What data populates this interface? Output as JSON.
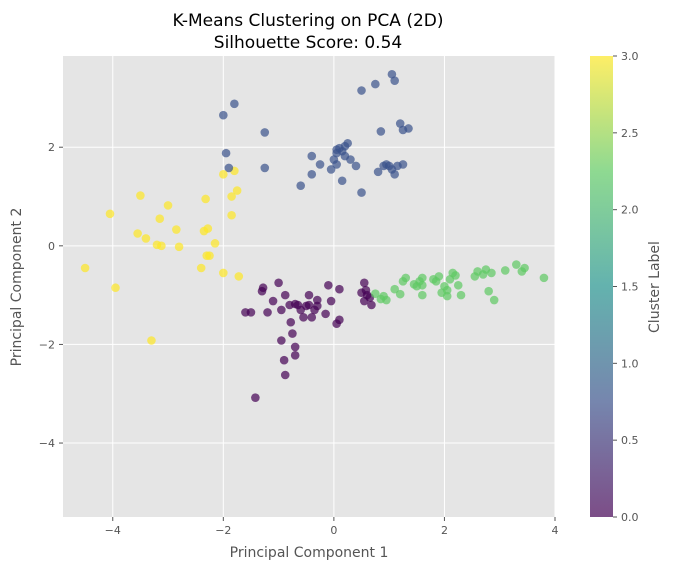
{
  "chart_data": {
    "type": "scatter",
    "title": "K-Means Clustering on PCA (2D)",
    "subtitle": "Silhouette Score: 0.54",
    "xlabel": "Principal Component 1",
    "ylabel": "Principal Component 2",
    "xlim": [
      -4.9,
      4.0
    ],
    "ylim": [
      -5.5,
      3.85
    ],
    "xticks": [
      -4,
      -2,
      0,
      2,
      4
    ],
    "yticks": [
      -4,
      -2,
      0,
      2
    ],
    "grid": true,
    "background": "#e5e5e5",
    "grid_color": "#ffffff",
    "point_alpha": 0.7,
    "colorbar": {
      "label": "Cluster Label",
      "range": [
        0.0,
        3.0
      ],
      "ticks": [
        "0.0",
        "0.5",
        "1.0",
        "1.5",
        "2.0",
        "2.5",
        "3.0"
      ],
      "tick_values": [
        0.0,
        0.5,
        1.0,
        1.5,
        2.0,
        2.5,
        3.0
      ],
      "colormap": "viridis",
      "stops": [
        "#440154",
        "#3b528b",
        "#21918c",
        "#5ec962",
        "#fde725"
      ]
    },
    "series": [
      {
        "cluster": 3,
        "color": "#fde725",
        "points": [
          [
            -4.5,
            -0.45
          ],
          [
            -4.05,
            0.65
          ],
          [
            -3.95,
            -0.85
          ],
          [
            -3.5,
            1.02
          ],
          [
            -3.55,
            0.25
          ],
          [
            -3.4,
            0.15
          ],
          [
            -3.2,
            0.02
          ],
          [
            -3.15,
            0.55
          ],
          [
            -3.12,
            0.0
          ],
          [
            -3.0,
            0.82
          ],
          [
            -2.85,
            0.33
          ],
          [
            -2.8,
            -0.02
          ],
          [
            -2.4,
            -0.45
          ],
          [
            -2.35,
            0.3
          ],
          [
            -2.32,
            0.95
          ],
          [
            -2.3,
            -0.2
          ],
          [
            -2.28,
            0.35
          ],
          [
            -2.25,
            -0.2
          ],
          [
            -2.15,
            0.05
          ],
          [
            -2.0,
            1.45
          ],
          [
            -2.0,
            -0.55
          ],
          [
            -1.85,
            1.0
          ],
          [
            -1.85,
            0.62
          ],
          [
            -1.8,
            1.52
          ],
          [
            -1.75,
            1.12
          ],
          [
            -1.72,
            -0.62
          ],
          [
            -3.3,
            -1.92
          ]
        ]
      },
      {
        "cluster": 1,
        "color": "#3b528b",
        "points": [
          [
            -2.0,
            2.65
          ],
          [
            -1.8,
            2.88
          ],
          [
            -1.95,
            1.88
          ],
          [
            -1.9,
            1.58
          ],
          [
            -1.25,
            2.3
          ],
          [
            -1.25,
            1.58
          ],
          [
            -0.6,
            1.22
          ],
          [
            -0.4,
            1.45
          ],
          [
            -0.4,
            1.82
          ],
          [
            -0.25,
            1.65
          ],
          [
            -0.05,
            1.55
          ],
          [
            0.0,
            1.75
          ],
          [
            0.05,
            1.65
          ],
          [
            0.05,
            1.88
          ],
          [
            0.1,
            1.98
          ],
          [
            0.15,
            1.92
          ],
          [
            0.2,
            2.02
          ],
          [
            0.25,
            2.08
          ],
          [
            0.2,
            1.82
          ],
          [
            0.3,
            1.75
          ],
          [
            0.4,
            1.62
          ],
          [
            0.15,
            1.32
          ],
          [
            0.5,
            3.15
          ],
          [
            0.5,
            1.08
          ],
          [
            0.75,
            3.28
          ],
          [
            0.8,
            1.5
          ],
          [
            0.9,
            1.62
          ],
          [
            0.95,
            1.65
          ],
          [
            1.0,
            1.62
          ],
          [
            1.05,
            1.55
          ],
          [
            1.1,
            1.45
          ],
          [
            1.05,
            3.48
          ],
          [
            1.1,
            3.35
          ],
          [
            1.15,
            1.62
          ],
          [
            1.2,
            2.48
          ],
          [
            1.25,
            1.65
          ],
          [
            1.25,
            2.35
          ],
          [
            1.35,
            2.38
          ],
          [
            0.85,
            2.32
          ],
          [
            0.05,
            1.95
          ]
        ]
      },
      {
        "cluster": 0,
        "color": "#440154",
        "points": [
          [
            -1.6,
            -1.35
          ],
          [
            -1.5,
            -1.35
          ],
          [
            -1.42,
            -3.08
          ],
          [
            -1.3,
            -0.92
          ],
          [
            -1.28,
            -0.85
          ],
          [
            -1.2,
            -1.35
          ],
          [
            -1.1,
            -1.12
          ],
          [
            -1.0,
            -0.75
          ],
          [
            -0.95,
            -1.92
          ],
          [
            -0.95,
            -1.3
          ],
          [
            -0.9,
            -2.32
          ],
          [
            -0.88,
            -2.62
          ],
          [
            -0.88,
            -1.0
          ],
          [
            -0.8,
            -1.2
          ],
          [
            -0.78,
            -1.55
          ],
          [
            -0.75,
            -1.78
          ],
          [
            -0.7,
            -2.05
          ],
          [
            -0.7,
            -2.22
          ],
          [
            -0.7,
            -1.18
          ],
          [
            -0.65,
            -1.2
          ],
          [
            -0.6,
            -1.3
          ],
          [
            -0.55,
            -1.45
          ],
          [
            -0.5,
            -1.22
          ],
          [
            -0.45,
            -1.2
          ],
          [
            -0.45,
            -1.0
          ],
          [
            -0.4,
            -1.45
          ],
          [
            -0.35,
            -1.3
          ],
          [
            -0.3,
            -1.1
          ],
          [
            -0.3,
            -1.22
          ],
          [
            -0.15,
            -1.38
          ],
          [
            -0.1,
            -0.8
          ],
          [
            -0.05,
            -1.12
          ],
          [
            0.05,
            -1.58
          ],
          [
            0.1,
            -1.5
          ],
          [
            0.1,
            -0.88
          ],
          [
            0.5,
            -0.95
          ],
          [
            0.55,
            -1.12
          ],
          [
            0.55,
            -0.75
          ],
          [
            0.58,
            -0.9
          ],
          [
            0.6,
            -1.0
          ],
          [
            0.65,
            -1.05
          ],
          [
            0.68,
            -1.2
          ]
        ]
      },
      {
        "cluster": 2,
        "color": "#5ec962",
        "points": [
          [
            0.75,
            -0.97
          ],
          [
            0.85,
            -1.08
          ],
          [
            0.9,
            -1.02
          ],
          [
            0.95,
            -1.1
          ],
          [
            1.1,
            -0.88
          ],
          [
            1.2,
            -0.98
          ],
          [
            1.25,
            -0.72
          ],
          [
            1.3,
            -0.65
          ],
          [
            1.45,
            -0.78
          ],
          [
            1.5,
            -0.82
          ],
          [
            1.55,
            -0.72
          ],
          [
            1.6,
            -0.65
          ],
          [
            1.6,
            -0.8
          ],
          [
            1.6,
            -1.0
          ],
          [
            1.8,
            -0.68
          ],
          [
            1.85,
            -0.72
          ],
          [
            1.9,
            -0.62
          ],
          [
            1.95,
            -0.95
          ],
          [
            2.0,
            -0.82
          ],
          [
            2.05,
            -0.9
          ],
          [
            2.05,
            -1.02
          ],
          [
            2.1,
            -0.68
          ],
          [
            2.15,
            -0.55
          ],
          [
            2.2,
            -0.6
          ],
          [
            2.25,
            -0.8
          ],
          [
            2.3,
            -1.0
          ],
          [
            2.55,
            -0.62
          ],
          [
            2.6,
            -0.52
          ],
          [
            2.7,
            -0.58
          ],
          [
            2.75,
            -0.48
          ],
          [
            2.8,
            -0.92
          ],
          [
            2.85,
            -0.55
          ],
          [
            2.9,
            -1.1
          ],
          [
            3.1,
            -0.5
          ],
          [
            3.3,
            -0.38
          ],
          [
            3.4,
            -0.52
          ],
          [
            3.45,
            -0.45
          ],
          [
            3.8,
            -0.65
          ]
        ]
      }
    ]
  }
}
